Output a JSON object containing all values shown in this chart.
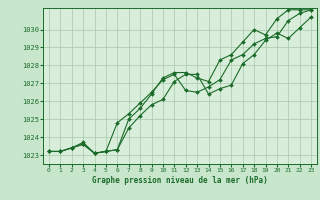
{
  "title": "Graphe pression niveau de la mer (hPa)",
  "background_color": "#c8e6cc",
  "plot_bg_color": "#d8eeda",
  "grid_color": "#a8c8ac",
  "line_color": "#1a6b2a",
  "xlim": [
    -0.5,
    23.5
  ],
  "ylim": [
    1022.5,
    1031.2
  ],
  "yticks": [
    1023,
    1024,
    1025,
    1026,
    1027,
    1028,
    1029,
    1030
  ],
  "xticks": [
    0,
    1,
    2,
    3,
    4,
    5,
    6,
    7,
    8,
    9,
    10,
    11,
    12,
    13,
    14,
    15,
    16,
    17,
    18,
    19,
    20,
    21,
    22,
    23
  ],
  "line1": [
    1023.2,
    1023.2,
    1023.4,
    1023.7,
    1023.1,
    1023.2,
    1023.3,
    1024.5,
    1025.2,
    1025.8,
    1026.1,
    1027.1,
    1027.5,
    1027.5,
    1026.4,
    1026.7,
    1026.9,
    1028.1,
    1028.6,
    1029.4,
    1029.8,
    1029.5,
    1030.1,
    1030.7
  ],
  "line2": [
    1023.2,
    1023.2,
    1023.4,
    1023.6,
    1023.1,
    1023.2,
    1024.8,
    1025.3,
    1025.9,
    1026.5,
    1027.2,
    1027.5,
    1026.6,
    1026.5,
    1026.8,
    1027.2,
    1028.3,
    1028.6,
    1029.2,
    1029.5,
    1029.6,
    1030.5,
    1030.9,
    1031.1
  ],
  "line3": [
    1023.2,
    1023.2,
    1023.4,
    1023.6,
    1023.1,
    1023.2,
    1023.3,
    1025.0,
    1025.6,
    1026.4,
    1027.3,
    1027.6,
    1027.6,
    1027.3,
    1027.1,
    1028.3,
    1028.6,
    1029.3,
    1030.0,
    1029.7,
    1030.6,
    1031.1,
    1031.1,
    1031.1
  ]
}
